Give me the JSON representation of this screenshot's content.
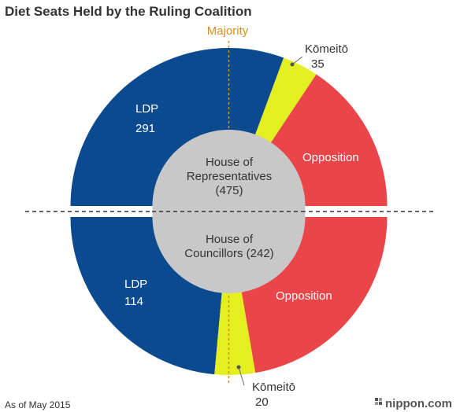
{
  "title": "Diet Seats Held by the Ruling Coalition",
  "majority_label": "Majority",
  "footnote": "As of May 2015",
  "brand": "nippon.com",
  "colors": {
    "ldp": "#0b4a8f",
    "komeito": "#e3ef1f",
    "opposition": "#ea4548",
    "center": "#c8c8c8",
    "majority_line": "#d9901a"
  },
  "chart_data": [
    {
      "type": "pie",
      "chamber": "House of Representatives",
      "center_label": [
        "House of",
        "Representatives",
        "(475)"
      ],
      "total": 475,
      "slices": [
        {
          "key": "ldp",
          "label": "LDP",
          "value": 291
        },
        {
          "key": "komeito",
          "label": "Kōmeitō",
          "value": 35
        },
        {
          "key": "opposition",
          "label": "Opposition",
          "value": 149
        }
      ]
    },
    {
      "type": "pie",
      "chamber": "House of Councillors",
      "center_label": [
        "House of",
        "Councillors (242)"
      ],
      "total": 242,
      "slices": [
        {
          "key": "ldp",
          "label": "LDP",
          "value": 114
        },
        {
          "key": "komeito",
          "label": "Kōmeitō",
          "value": 20
        },
        {
          "key": "opposition",
          "label": "Opposition",
          "value": 108
        }
      ]
    }
  ]
}
